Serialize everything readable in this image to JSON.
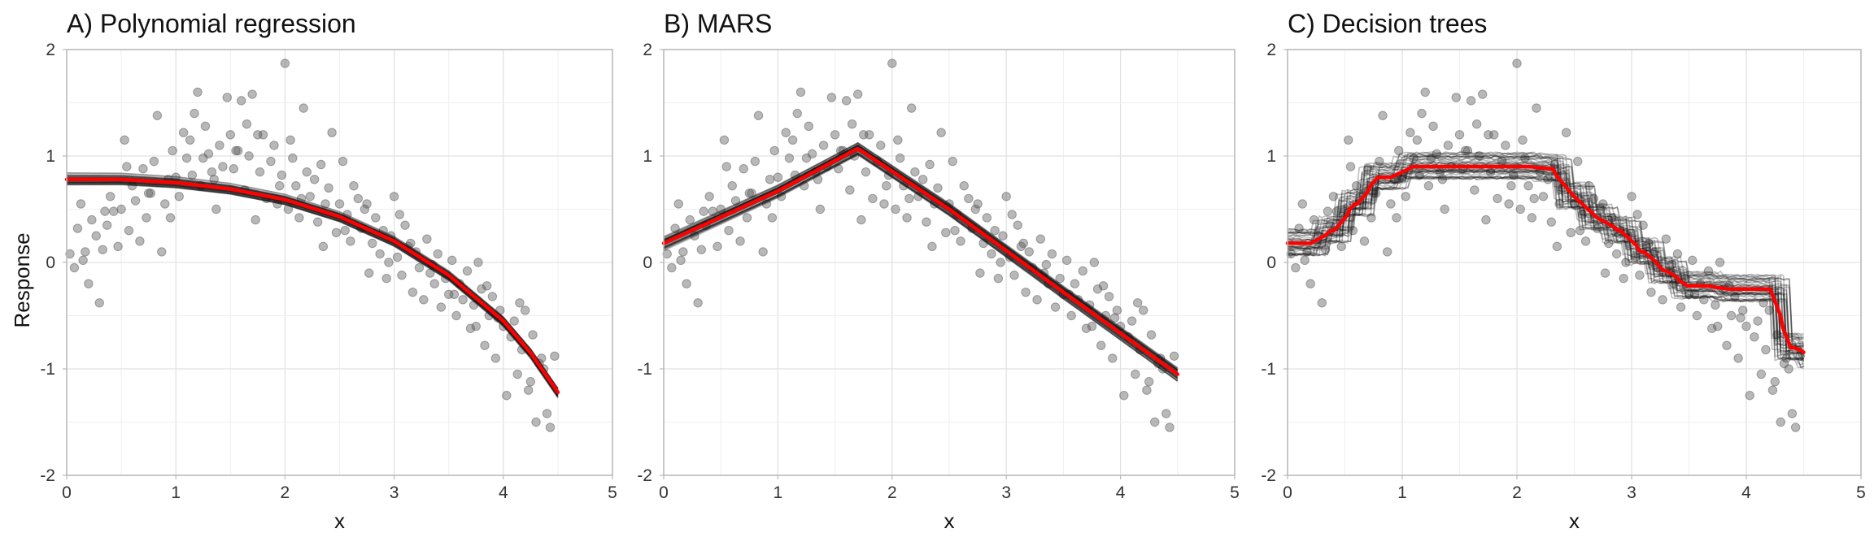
{
  "figure": {
    "ylabel": "Response",
    "colors": {
      "points": "#555555",
      "ensemble": "#111111",
      "average": "#ff0000",
      "grid_major": "#e2e2e2",
      "grid_minor": "#efefef",
      "border": "#b8b8b8"
    }
  },
  "chart_data": [
    {
      "type": "scatter",
      "title": "A) Polynomial regression",
      "xlabel": "x",
      "ylabel": "Response",
      "xlim": [
        0,
        5
      ],
      "ylim": [
        -2,
        2
      ],
      "x_ticks": [
        "0",
        "1",
        "2",
        "3",
        "4",
        "5"
      ],
      "y_ticks": [
        "-2",
        "-1",
        "0",
        "1",
        "2"
      ],
      "grid": true,
      "points_shared": "observations",
      "fit_kind": "smooth",
      "fit_x": [
        0,
        0.5,
        1.0,
        1.5,
        2.0,
        2.5,
        3.0,
        3.5,
        4.0,
        4.25,
        4.5
      ],
      "fit_y": [
        0.78,
        0.78,
        0.75,
        0.69,
        0.59,
        0.43,
        0.2,
        -0.12,
        -0.55,
        -0.85,
        -1.22
      ],
      "ensemble_spread": 0.05
    },
    {
      "type": "scatter",
      "title": "B) MARS",
      "xlabel": "x",
      "ylabel": "",
      "xlim": [
        0,
        5
      ],
      "ylim": [
        -2,
        2
      ],
      "x_ticks": [
        "0",
        "1",
        "2",
        "3",
        "4",
        "5"
      ],
      "y_ticks": [
        "-2",
        "-1",
        "0",
        "1",
        "2"
      ],
      "grid": true,
      "points_shared": "observations",
      "fit_kind": "linear",
      "fit_x": [
        0,
        1.0,
        1.7,
        2.5,
        3.5,
        4.5
      ],
      "fit_y": [
        0.18,
        0.67,
        1.07,
        0.5,
        -0.28,
        -1.05
      ],
      "ensemble_spread": 0.06
    },
    {
      "type": "scatter",
      "title": "C) Decision trees",
      "xlabel": "x",
      "ylabel": "",
      "xlim": [
        0,
        5
      ],
      "ylim": [
        -2,
        2
      ],
      "x_ticks": [
        "0",
        "1",
        "2",
        "3",
        "4",
        "5"
      ],
      "y_ticks": [
        "-2",
        "-1",
        "0",
        "1",
        "2"
      ],
      "grid": true,
      "points_shared": "observations",
      "fit_kind": "step",
      "fit_x": [
        0,
        0.3,
        0.5,
        0.7,
        1.0,
        2.2,
        2.4,
        2.6,
        2.8,
        3.0,
        3.2,
        3.4,
        3.75,
        4.3,
        4.5
      ],
      "fit_y": [
        0.18,
        0.3,
        0.55,
        0.8,
        0.9,
        0.88,
        0.62,
        0.42,
        0.3,
        0.1,
        -0.08,
        -0.22,
        -0.25,
        -0.8,
        -0.88
      ],
      "ensemble_spread": 0.13
    }
  ],
  "observations": {
    "x": [
      0.03,
      0.07,
      0.1,
      0.13,
      0.17,
      0.2,
      0.23,
      0.27,
      0.3,
      0.33,
      0.37,
      0.4,
      0.43,
      0.47,
      0.5,
      0.53,
      0.57,
      0.6,
      0.63,
      0.67,
      0.7,
      0.73,
      0.77,
      0.8,
      0.83,
      0.87,
      0.9,
      0.93,
      0.97,
      1.0,
      1.03,
      1.07,
      1.1,
      1.13,
      1.17,
      1.2,
      1.23,
      1.27,
      1.3,
      1.33,
      1.37,
      1.4,
      1.43,
      1.47,
      1.5,
      1.53,
      1.57,
      1.6,
      1.63,
      1.67,
      1.7,
      1.73,
      1.77,
      1.8,
      1.83,
      1.87,
      1.9,
      1.93,
      1.97,
      2.0,
      2.03,
      2.07,
      2.1,
      2.13,
      2.17,
      2.2,
      2.23,
      2.27,
      2.3,
      2.33,
      2.37,
      2.4,
      2.43,
      2.47,
      2.5,
      2.53,
      2.57,
      2.6,
      2.63,
      2.67,
      2.7,
      2.73,
      2.77,
      2.8,
      2.83,
      2.87,
      2.9,
      2.93,
      2.97,
      3.0,
      3.03,
      3.07,
      3.1,
      3.13,
      3.17,
      3.2,
      3.23,
      3.27,
      3.3,
      3.33,
      3.37,
      3.4,
      3.43,
      3.47,
      3.5,
      3.53,
      3.57,
      3.6,
      3.63,
      3.67,
      3.7,
      3.73,
      3.77,
      3.8,
      3.83,
      3.87,
      3.9,
      3.93,
      3.97,
      4.0,
      4.03,
      4.07,
      4.1,
      4.13,
      4.17,
      4.2,
      4.23,
      4.27,
      4.3,
      4.33,
      4.37,
      4.4,
      4.43,
      4.47,
      0.15,
      0.55,
      0.95,
      1.35,
      1.75,
      2.15,
      2.55,
      2.95,
      3.35,
      3.75,
      4.15,
      0.35,
      0.75,
      1.15,
      1.55,
      1.95,
      2.35,
      2.75,
      3.15,
      3.55,
      3.95,
      4.35,
      1.25,
      1.65,
      2.05,
      3.05,
      3.85,
      4.25
    ],
    "y": [
      0.08,
      -0.05,
      0.32,
      0.55,
      0.1,
      -0.2,
      0.4,
      0.25,
      -0.38,
      0.12,
      0.35,
      0.62,
      0.48,
      0.15,
      0.5,
      1.15,
      0.3,
      0.72,
      0.58,
      0.2,
      0.88,
      0.42,
      0.65,
      0.95,
      1.38,
      0.1,
      0.55,
      0.78,
      1.05,
      0.8,
      0.62,
      1.22,
      0.98,
      1.15,
      1.4,
      1.6,
      0.72,
      1.28,
      1.02,
      0.85,
      0.5,
      1.1,
      0.9,
      1.55,
      1.2,
      0.88,
      1.05,
      1.52,
      0.68,
      1.0,
      1.58,
      0.4,
      0.85,
      1.2,
      0.6,
      0.95,
      1.1,
      0.55,
      0.82,
      1.87,
      0.5,
      0.98,
      0.72,
      0.42,
      1.45,
      0.85,
      0.62,
      0.78,
      0.38,
      0.92,
      0.55,
      0.7,
      1.22,
      0.28,
      0.55,
      0.95,
      0.45,
      0.2,
      0.72,
      0.6,
      0.32,
      0.5,
      -0.1,
      0.18,
      0.42,
      0.08,
      0.3,
      -0.15,
      0.25,
      0.62,
      0.05,
      -0.12,
      0.35,
      0.15,
      -0.28,
      0.1,
      -0.05,
      -0.35,
      0.22,
      -0.1,
      -0.2,
      0.08,
      -0.42,
      -0.15,
      -0.3,
      0.02,
      -0.5,
      -0.2,
      -0.35,
      -0.08,
      -0.62,
      -0.4,
      0.0,
      -0.25,
      -0.78,
      -0.5,
      -0.32,
      -0.9,
      -0.45,
      -0.6,
      -1.25,
      -0.7,
      -0.55,
      -1.05,
      -0.82,
      -0.45,
      -1.2,
      -0.68,
      -1.5,
      -0.95,
      -1.0,
      -1.42,
      -1.55,
      -0.88,
      0.02,
      0.9,
      0.42,
      0.78,
      1.2,
      0.6,
      0.3,
      0.0,
      -0.02,
      -0.6,
      -0.38,
      0.48,
      0.65,
      0.82,
      1.05,
      0.72,
      0.15,
      0.55,
      0.18,
      -0.3,
      -0.52,
      -0.9,
      0.98,
      1.3,
      1.15,
      0.45,
      -0.22,
      -1.12
    ]
  }
}
